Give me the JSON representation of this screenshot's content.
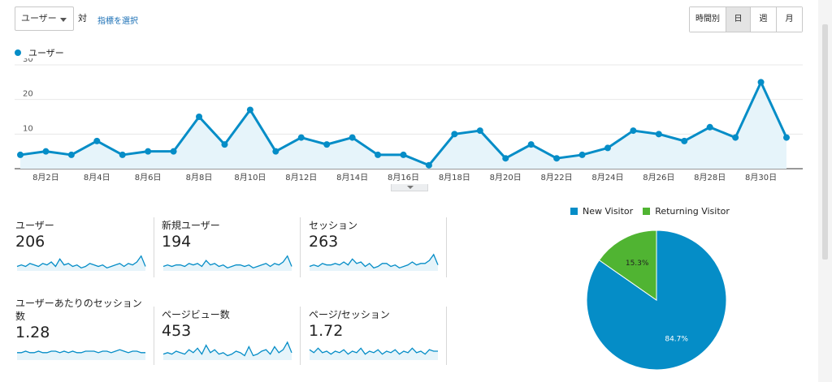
{
  "controls": {
    "metric_select": "ユーザー",
    "vs_label": "対",
    "choose_metric_link": "指標を選択",
    "granularity": [
      {
        "label": "時間別",
        "active": false
      },
      {
        "label": "日",
        "active": true
      },
      {
        "label": "週",
        "active": false
      },
      {
        "label": "月",
        "active": false
      }
    ]
  },
  "colors": {
    "line": "#058dc7",
    "area": "#e6f4fa",
    "new_visitor": "#058dc7",
    "returning_visitor": "#50b432",
    "sparkline_fill": "#e6f4fa"
  },
  "chart_data": [
    {
      "type": "area",
      "series": [
        {
          "name": "ユーザー",
          "x": [
            "8月1日",
            "8月2日",
            "8月3日",
            "8月4日",
            "8月5日",
            "8月6日",
            "8月7日",
            "8月8日",
            "8月9日",
            "8月10日",
            "8月11日",
            "8月12日",
            "8月13日",
            "8月14日",
            "8月15日",
            "8月16日",
            "8月17日",
            "8月18日",
            "8月19日",
            "8月20日",
            "8月21日",
            "8月22日",
            "8月23日",
            "8月24日",
            "8月25日",
            "8月26日",
            "8月27日",
            "8月28日",
            "8月29日",
            "8月30日",
            "8月31日"
          ],
          "values": [
            4,
            5,
            4,
            8,
            4,
            5,
            5,
            15,
            7,
            17,
            5,
            9,
            7,
            9,
            4,
            4,
            1,
            10,
            11,
            3,
            7,
            3,
            4,
            6,
            11,
            10,
            8,
            12,
            9,
            25,
            9
          ]
        }
      ],
      "xticks": [
        "8月2日",
        "8月4日",
        "8月6日",
        "8月8日",
        "8月10日",
        "8月12日",
        "8月14日",
        "8月16日",
        "8月18日",
        "8月20日",
        "8月22日",
        "8月24日",
        "8月26日",
        "8月28日",
        "8月30日"
      ],
      "yticks": [
        10,
        20,
        30
      ],
      "ylim": [
        0,
        30
      ],
      "grid": true
    },
    {
      "type": "pie",
      "categories": [
        "New Visitor",
        "Returning Visitor"
      ],
      "values": [
        84.7,
        15.3
      ],
      "labels": [
        "84.7%",
        "15.3%"
      ],
      "legend": "top"
    }
  ],
  "metrics": [
    {
      "label": "ユーザー",
      "value": "206",
      "spark": [
        3,
        4,
        3,
        5,
        4,
        3,
        5,
        4,
        6,
        3,
        8,
        4,
        5,
        3,
        4,
        2,
        3,
        5,
        4,
        3,
        4,
        2,
        3,
        4,
        5,
        3,
        5,
        4,
        6,
        10,
        3
      ]
    },
    {
      "label": "新規ユーザー",
      "value": "194",
      "spark": [
        3,
        4,
        3,
        4,
        4,
        3,
        5,
        4,
        5,
        3,
        7,
        4,
        5,
        3,
        4,
        2,
        3,
        4,
        4,
        3,
        4,
        2,
        3,
        4,
        5,
        3,
        5,
        4,
        6,
        10,
        3
      ]
    },
    {
      "label": "セッション",
      "value": "263",
      "spark": [
        3,
        4,
        3,
        5,
        4,
        4,
        5,
        4,
        6,
        4,
        8,
        5,
        6,
        3,
        5,
        2,
        3,
        5,
        5,
        3,
        4,
        2,
        3,
        4,
        6,
        4,
        5,
        5,
        7,
        11,
        4
      ]
    },
    {
      "label": "ユーザーあたりのセッション数",
      "value": "1.28",
      "spark": [
        5,
        5,
        6,
        5,
        5,
        6,
        5,
        5,
        6,
        6,
        5,
        6,
        5,
        6,
        5,
        5,
        6,
        6,
        6,
        5,
        6,
        6,
        5,
        6,
        7,
        6,
        5,
        6,
        6,
        5,
        5
      ]
    },
    {
      "label": "ページビュー数",
      "value": "453",
      "spark": [
        4,
        5,
        4,
        6,
        5,
        4,
        7,
        5,
        8,
        4,
        10,
        5,
        7,
        4,
        5,
        3,
        4,
        6,
        5,
        3,
        9,
        3,
        4,
        6,
        7,
        4,
        9,
        5,
        7,
        12,
        5
      ]
    },
    {
      "label": "ページ/セッション",
      "value": "1.72",
      "spark": [
        7,
        5,
        8,
        5,
        6,
        4,
        6,
        5,
        7,
        4,
        6,
        5,
        8,
        4,
        6,
        5,
        7,
        4,
        6,
        5,
        7,
        4,
        6,
        5,
        8,
        5,
        6,
        4,
        7,
        6,
        6
      ]
    }
  ]
}
